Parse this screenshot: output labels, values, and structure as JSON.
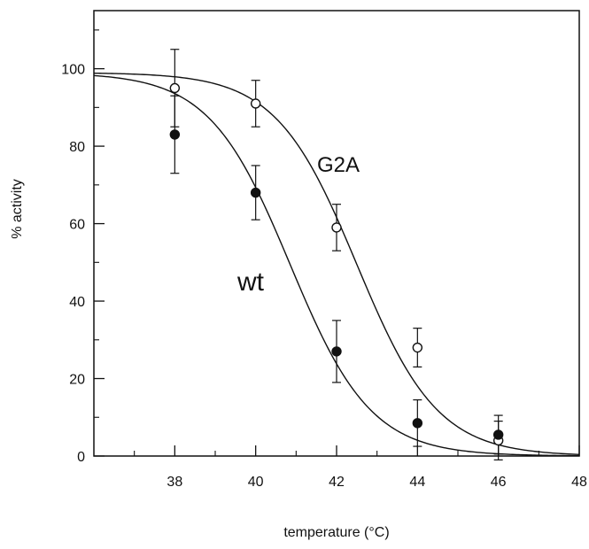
{
  "chart_data": {
    "type": "scatter",
    "xlabel": "temperature (°C)",
    "ylabel": "% activity",
    "xlim": [
      36,
      48
    ],
    "ylim": [
      0,
      115
    ],
    "x_ticks": [
      38,
      40,
      42,
      44,
      46,
      48
    ],
    "x_minor_ticks": [
      37,
      39,
      41,
      43,
      45,
      47
    ],
    "y_ticks": [
      0,
      20,
      40,
      60,
      80,
      100
    ],
    "y_minor_ticks": [
      10,
      30,
      50,
      70,
      90,
      110
    ],
    "grid": false,
    "legend": "none",
    "series": [
      {
        "name": "G2A",
        "marker": "open-circle",
        "points": [
          {
            "x": 38,
            "y": 95,
            "err": 10
          },
          {
            "x": 40,
            "y": 91,
            "err": 6
          },
          {
            "x": 42,
            "y": 59,
            "err": 6
          },
          {
            "x": 44,
            "y": 28,
            "err": 5
          },
          {
            "x": 46,
            "y": 4,
            "err": 5
          }
        ],
        "fit": {
          "top": 99,
          "t50": 42.5,
          "slope": 1.0
        }
      },
      {
        "name": "wt",
        "marker": "filled-circle",
        "points": [
          {
            "x": 38,
            "y": 83,
            "err": 10
          },
          {
            "x": 40,
            "y": 68,
            "err": 7
          },
          {
            "x": 42,
            "y": 27,
            "err": 8
          },
          {
            "x": 44,
            "y": 8.5,
            "err": 6
          },
          {
            "x": 46,
            "y": 5.5,
            "err": 5
          }
        ],
        "fit": {
          "top": 99,
          "t50": 40.85,
          "slope": 1.0
        }
      }
    ]
  }
}
